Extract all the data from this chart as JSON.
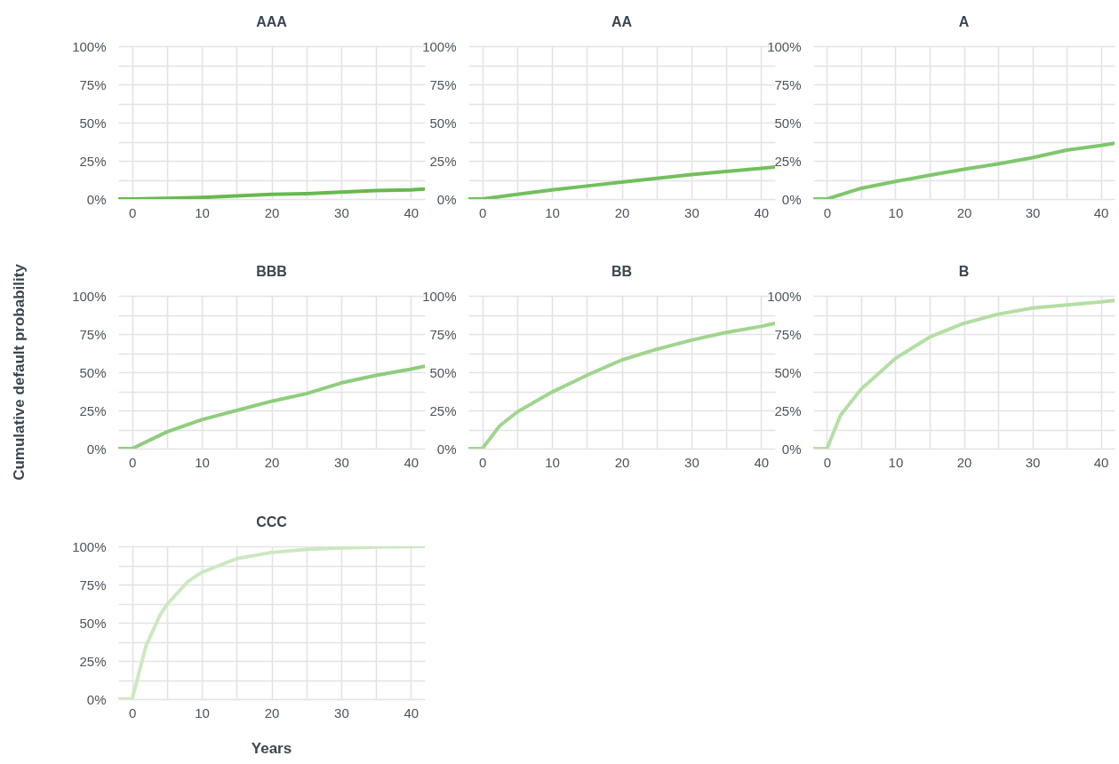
{
  "chart_data": [
    {
      "type": "line",
      "title": "AAA",
      "x": [
        -2,
        0,
        5,
        10,
        15,
        20,
        25,
        30,
        35,
        40,
        42
      ],
      "values": [
        0,
        0,
        0.5,
        1,
        2,
        3,
        3.5,
        4.5,
        5.5,
        6,
        6.5
      ],
      "color": "#66b94f",
      "xlim": [
        -2,
        42
      ],
      "ylim": [
        0,
        100
      ],
      "xticks": [
        0,
        {
          "value": 5,
          "label": null
        },
        10,
        {
          "value": 15,
          "label": null
        },
        20,
        {
          "value": 25,
          "label": null
        },
        30,
        {
          "value": 35,
          "label": null
        },
        40
      ],
      "yticks": [
        {
          "value": 0,
          "label": "0%"
        },
        {
          "value": 12.5,
          "label": null
        },
        {
          "value": 25,
          "label": "25%"
        },
        {
          "value": 37.5,
          "label": null
        },
        {
          "value": 50,
          "label": "50%"
        },
        {
          "value": 62.5,
          "label": null
        },
        {
          "value": 75,
          "label": "75%"
        },
        {
          "value": 87.5,
          "label": null
        },
        {
          "value": 100,
          "label": "100%"
        }
      ],
      "grid": true
    },
    {
      "type": "line",
      "title": "AA",
      "x": [
        -2,
        0,
        5,
        10,
        15,
        20,
        25,
        30,
        35,
        40,
        42
      ],
      "values": [
        0,
        0,
        3,
        6,
        8.5,
        11,
        13.5,
        16,
        18,
        20,
        21
      ],
      "color": "#72c05d",
      "xlim": [
        -2,
        42
      ],
      "ylim": [
        0,
        100
      ],
      "xticks": [
        0,
        {
          "value": 5,
          "label": null
        },
        10,
        {
          "value": 15,
          "label": null
        },
        20,
        {
          "value": 25,
          "label": null
        },
        30,
        {
          "value": 35,
          "label": null
        },
        40
      ],
      "yticks": [
        {
          "value": 0,
          "label": "0%"
        },
        {
          "value": 12.5,
          "label": null
        },
        {
          "value": 25,
          "label": "25%"
        },
        {
          "value": 37.5,
          "label": null
        },
        {
          "value": 50,
          "label": "50%"
        },
        {
          "value": 62.5,
          "label": null
        },
        {
          "value": 75,
          "label": "75%"
        },
        {
          "value": 87.5,
          "label": null
        },
        {
          "value": 100,
          "label": "100%"
        }
      ],
      "grid": true
    },
    {
      "type": "line",
      "title": "A",
      "x": [
        -2,
        0,
        5,
        10,
        15,
        20,
        25,
        30,
        35,
        40,
        42
      ],
      "values": [
        0,
        0,
        7,
        11.5,
        15.5,
        19.5,
        23,
        27,
        32,
        35,
        36.5
      ],
      "color": "#7fc66c",
      "xlim": [
        -2,
        42
      ],
      "ylim": [
        0,
        100
      ],
      "xticks": [
        0,
        {
          "value": 5,
          "label": null
        },
        10,
        {
          "value": 15,
          "label": null
        },
        20,
        {
          "value": 25,
          "label": null
        },
        30,
        {
          "value": 35,
          "label": null
        },
        40
      ],
      "yticks": [
        {
          "value": 0,
          "label": "0%"
        },
        {
          "value": 12.5,
          "label": null
        },
        {
          "value": 25,
          "label": "25%"
        },
        {
          "value": 37.5,
          "label": null
        },
        {
          "value": 50,
          "label": "50%"
        },
        {
          "value": 62.5,
          "label": null
        },
        {
          "value": 75,
          "label": "75%"
        },
        {
          "value": 87.5,
          "label": null
        },
        {
          "value": 100,
          "label": "100%"
        }
      ],
      "grid": true
    },
    {
      "type": "line",
      "title": "BBB",
      "ylabel": "Cumulative default probability",
      "x": [
        -2,
        0,
        5,
        10,
        15,
        20,
        25,
        30,
        35,
        40,
        42
      ],
      "values": [
        0,
        0,
        11,
        19,
        25,
        31,
        36,
        43,
        48,
        52,
        54
      ],
      "color": "#8ecd7c",
      "xlim": [
        -2,
        42
      ],
      "ylim": [
        0,
        100
      ],
      "xticks": [
        0,
        {
          "value": 5,
          "label": null
        },
        10,
        {
          "value": 15,
          "label": null
        },
        20,
        {
          "value": 25,
          "label": null
        },
        30,
        {
          "value": 35,
          "label": null
        },
        40
      ],
      "yticks": [
        {
          "value": 0,
          "label": "0%"
        },
        {
          "value": 12.5,
          "label": null
        },
        {
          "value": 25,
          "label": "25%"
        },
        {
          "value": 37.5,
          "label": null
        },
        {
          "value": 50,
          "label": "50%"
        },
        {
          "value": 62.5,
          "label": null
        },
        {
          "value": 75,
          "label": "75%"
        },
        {
          "value": 87.5,
          "label": null
        },
        {
          "value": 100,
          "label": "100%"
        }
      ],
      "grid": true
    },
    {
      "type": "line",
      "title": "BB",
      "x": [
        -2,
        0,
        2.5,
        5,
        10,
        15,
        20,
        25,
        30,
        35,
        40,
        42
      ],
      "values": [
        0,
        0,
        15,
        24,
        37,
        48,
        58,
        65,
        71,
        76,
        80,
        82
      ],
      "color": "#a0d58f",
      "xlim": [
        -2,
        42
      ],
      "ylim": [
        0,
        100
      ],
      "xticks": [
        0,
        {
          "value": 5,
          "label": null
        },
        10,
        {
          "value": 15,
          "label": null
        },
        20,
        {
          "value": 25,
          "label": null
        },
        30,
        {
          "value": 35,
          "label": null
        },
        40
      ],
      "yticks": [
        {
          "value": 0,
          "label": "0%"
        },
        {
          "value": 12.5,
          "label": null
        },
        {
          "value": 25,
          "label": "25%"
        },
        {
          "value": 37.5,
          "label": null
        },
        {
          "value": 50,
          "label": "50%"
        },
        {
          "value": 62.5,
          "label": null
        },
        {
          "value": 75,
          "label": "75%"
        },
        {
          "value": 87.5,
          "label": null
        },
        {
          "value": 100,
          "label": "100%"
        }
      ],
      "grid": true
    },
    {
      "type": "line",
      "title": "B",
      "x": [
        -2,
        0,
        2,
        5,
        10,
        15,
        20,
        25,
        30,
        35,
        40,
        42
      ],
      "values": [
        0,
        0,
        22,
        39,
        59,
        73,
        82,
        88,
        92,
        94,
        96,
        97
      ],
      "color": "#b4dea5",
      "xlim": [
        -2,
        42
      ],
      "ylim": [
        0,
        100
      ],
      "xticks": [
        0,
        {
          "value": 5,
          "label": null
        },
        10,
        {
          "value": 15,
          "label": null
        },
        20,
        {
          "value": 25,
          "label": null
        },
        30,
        {
          "value": 35,
          "label": null
        },
        40
      ],
      "yticks": [
        {
          "value": 0,
          "label": "0%"
        },
        {
          "value": 12.5,
          "label": null
        },
        {
          "value": 25,
          "label": "25%"
        },
        {
          "value": 37.5,
          "label": null
        },
        {
          "value": 50,
          "label": "50%"
        },
        {
          "value": 62.5,
          "label": null
        },
        {
          "value": 75,
          "label": "75%"
        },
        {
          "value": 87.5,
          "label": null
        },
        {
          "value": 100,
          "label": "100%"
        }
      ],
      "grid": true
    },
    {
      "type": "line",
      "title": "CCC",
      "xlabel": "Years",
      "x": [
        -2,
        0,
        2,
        4,
        5,
        8,
        10,
        15,
        20,
        25,
        30,
        35,
        42
      ],
      "values": [
        0,
        0,
        35,
        55,
        62,
        77,
        83,
        92,
        96,
        98,
        99,
        99.5,
        100
      ],
      "color": "#cce8c0",
      "xlim": [
        -2,
        42
      ],
      "ylim": [
        0,
        100
      ],
      "xticks": [
        0,
        {
          "value": 5,
          "label": null
        },
        10,
        {
          "value": 15,
          "label": null
        },
        20,
        {
          "value": 25,
          "label": null
        },
        30,
        {
          "value": 35,
          "label": null
        },
        40
      ],
      "yticks": [
        {
          "value": 0,
          "label": "0%"
        },
        {
          "value": 12.5,
          "label": null
        },
        {
          "value": 25,
          "label": "25%"
        },
        {
          "value": 37.5,
          "label": null
        },
        {
          "value": 50,
          "label": "50%"
        },
        {
          "value": 62.5,
          "label": null
        },
        {
          "value": 75,
          "label": "75%"
        },
        {
          "value": 87.5,
          "label": null
        },
        {
          "value": 100,
          "label": "100%"
        }
      ],
      "grid": true
    }
  ]
}
